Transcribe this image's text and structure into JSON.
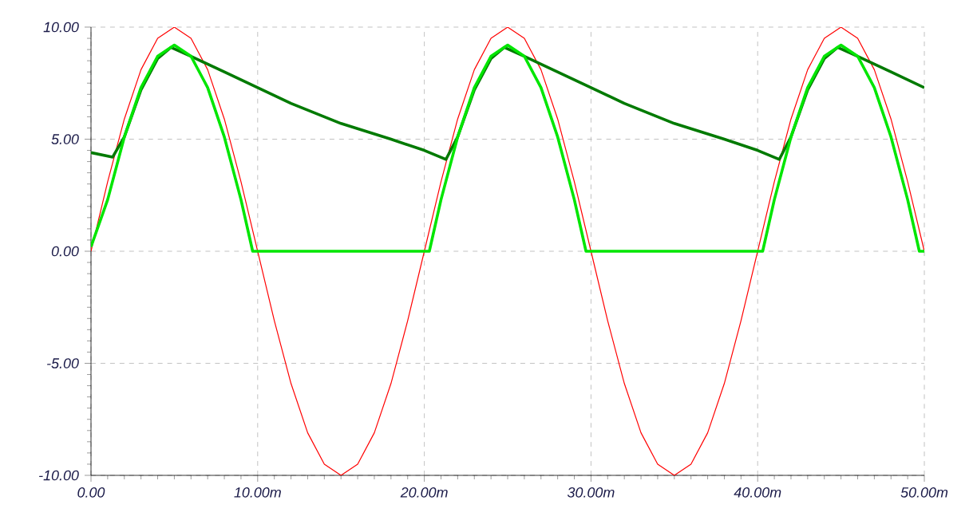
{
  "chart_data": {
    "type": "line",
    "xlim": [
      0,
      50
    ],
    "ylim": [
      -10,
      10
    ],
    "xticks": [
      {
        "value": 0,
        "label": "0.00"
      },
      {
        "value": 10,
        "label": "10.00m"
      },
      {
        "value": 20,
        "label": "20.00m"
      },
      {
        "value": 30,
        "label": "30.00m"
      },
      {
        "value": 40,
        "label": "40.00m"
      },
      {
        "value": 50,
        "label": "50.00m"
      }
    ],
    "yticks": [
      {
        "value": -10,
        "label": "-10.00"
      },
      {
        "value": -5,
        "label": "-5.00"
      },
      {
        "value": 0,
        "label": "0.00"
      },
      {
        "value": 5,
        "label": "5.00"
      },
      {
        "value": 10,
        "label": "10.00"
      }
    ],
    "grid": true,
    "marker": "none",
    "line_style": "solid",
    "series": [
      {
        "color": "#ff0000",
        "x": [
          0,
          1,
          2,
          3,
          4,
          5,
          6,
          7,
          8,
          9,
          10,
          11,
          12,
          13,
          14,
          15,
          16,
          17,
          18,
          19,
          20,
          21,
          22,
          23,
          24,
          25,
          26,
          27,
          28,
          29,
          30,
          31,
          32,
          33,
          34,
          35,
          36,
          37,
          38,
          39,
          40,
          41,
          42,
          43,
          44,
          45,
          46,
          47,
          48,
          49,
          50
        ],
        "values": [
          0,
          3.1,
          5.9,
          8.1,
          9.5,
          10,
          9.5,
          8.1,
          5.9,
          3.1,
          0,
          -3.1,
          -5.9,
          -8.1,
          -9.5,
          -10,
          -9.5,
          -8.1,
          -5.9,
          -3.1,
          0,
          3.1,
          5.9,
          8.1,
          9.5,
          10,
          9.5,
          8.1,
          5.9,
          3.1,
          0,
          -3.1,
          -5.9,
          -8.1,
          -9.5,
          -10,
          -9.5,
          -8.1,
          -5.9,
          -3.1,
          0,
          3.1,
          5.9,
          8.1,
          9.5,
          10,
          9.5,
          8.1,
          5.9,
          3.1,
          0
        ]
      },
      {
        "color": "#007a00",
        "x": [
          0,
          1.3,
          2,
          3,
          4,
          4.8,
          6,
          8,
          10,
          12,
          15,
          18,
          20,
          21.3,
          22,
          23,
          24,
          24.8,
          26,
          28,
          30,
          32,
          35,
          38,
          40,
          41.3,
          42,
          43,
          44,
          44.8,
          46,
          48,
          50
        ],
        "values": [
          4.4,
          4.2,
          5.1,
          7.2,
          8.6,
          9.1,
          8.7,
          8.0,
          7.3,
          6.6,
          5.7,
          5.0,
          4.5,
          4.1,
          5.1,
          7.2,
          8.6,
          9.1,
          8.7,
          8.0,
          7.3,
          6.6,
          5.7,
          5.0,
          4.5,
          4.1,
          5.1,
          7.2,
          8.6,
          9.1,
          8.7,
          8.0,
          7.3
        ]
      },
      {
        "color": "#00e600",
        "x": [
          0,
          1,
          2,
          3,
          4,
          5,
          6,
          7,
          8,
          9,
          9.7,
          20.3,
          21,
          22,
          23,
          24,
          25,
          26,
          27,
          28,
          29,
          29.7,
          40.3,
          41,
          42,
          43,
          44,
          45,
          46,
          47,
          48,
          49,
          49.7,
          50
        ],
        "values": [
          0.2,
          2.3,
          5.1,
          7.3,
          8.7,
          9.2,
          8.7,
          7.3,
          5.1,
          2.3,
          0,
          0,
          2.3,
          5.1,
          7.3,
          8.7,
          9.2,
          8.7,
          7.3,
          5.1,
          2.3,
          0,
          0,
          2.3,
          5.1,
          7.3,
          8.7,
          9.2,
          8.7,
          7.3,
          5.1,
          2.3,
          0,
          0
        ]
      }
    ]
  }
}
